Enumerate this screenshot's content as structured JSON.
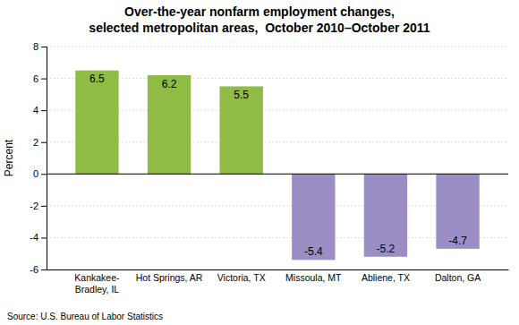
{
  "chart_data": {
    "type": "bar",
    "title": "Over-the-year nonfarm employment changes,\nselected metropolitan areas,  October 2010–October 2011",
    "categories": [
      "Kankakee-\nBradley, IL",
      "Hot Springs, AR",
      "Victoria, TX",
      "Missoula, MT",
      "Abliene, TX",
      "Dalton, GA"
    ],
    "values": [
      6.5,
      6.2,
      5.5,
      -5.4,
      -5.2,
      -4.7
    ],
    "colors": [
      "#8fbc45",
      "#8fbc45",
      "#8fbc45",
      "#9b8ec4",
      "#9b8ec4",
      "#9b8ec4"
    ],
    "ylabel": "Percent",
    "ylim": [
      -6,
      8
    ],
    "yticks": [
      -6,
      -4,
      -2,
      0,
      2,
      4,
      6,
      8
    ],
    "grid": true,
    "data_labels": true,
    "source": "Source: U.S. Bureau of Labor Statistics"
  }
}
